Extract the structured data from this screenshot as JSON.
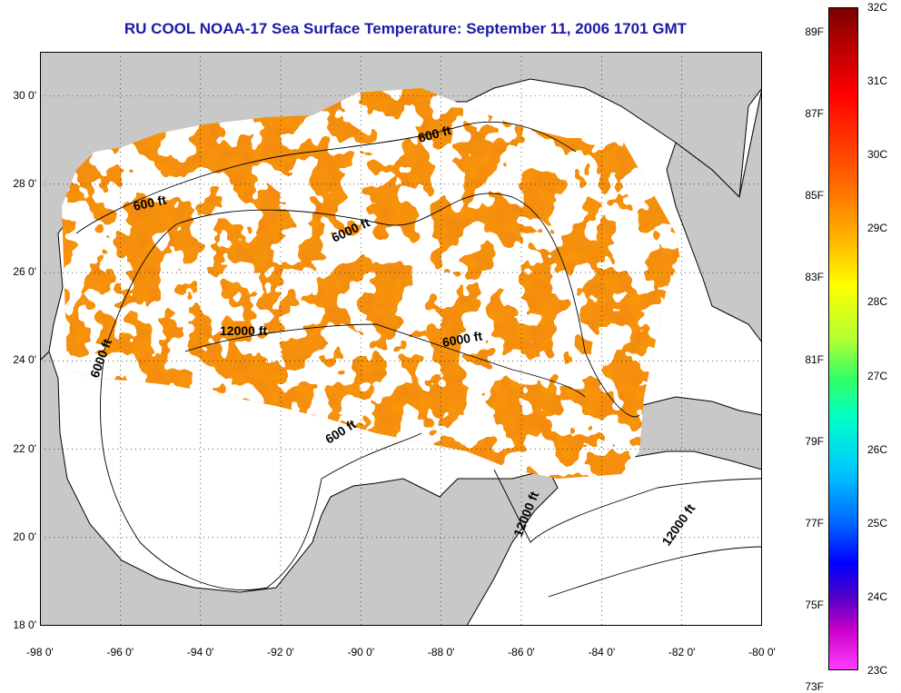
{
  "title": "RU COOL  NOAA-17  Sea Surface Temperature:  September 11, 2006 1701 GMT",
  "y_ticks": [
    "30 0'",
    "28 0'",
    "26 0'",
    "24 0'",
    "22 0'",
    "20 0'",
    "18 0'"
  ],
  "x_ticks": [
    "-98 0'",
    "-96 0'",
    "-94 0'",
    "-92 0'",
    "-90 0'",
    "-88 0'",
    "-86 0'",
    "-84 0'",
    "-82 0'",
    "-80 0'"
  ],
  "contour_labels": [
    "600 ft",
    "600 ft",
    "6000 ft",
    "12000 ft",
    "6000 ft",
    "6000 ft",
    "600 ft",
    "12000 ft",
    "12000 ft"
  ],
  "colorbar": {
    "fahrenheit": [
      "89F",
      "87F",
      "85F",
      "83F",
      "81F",
      "79F",
      "77F",
      "75F",
      "73F"
    ],
    "celsius": [
      "32C",
      "31C",
      "30C",
      "29C",
      "28C",
      "27C",
      "26C",
      "25C",
      "24C",
      "23C"
    ]
  },
  "colors": {
    "land": "#c8c8c8",
    "no_data": "#ffffff",
    "title": "#1a1aa8",
    "sst_warm": "#ff6a00",
    "sst_hot": "#e8140a"
  },
  "map": {
    "lon_range": [
      -98,
      -80
    ],
    "lat_range": [
      18,
      31
    ],
    "grid": true,
    "projection": "equirectangular",
    "color_scale_C": [
      23,
      32
    ]
  }
}
